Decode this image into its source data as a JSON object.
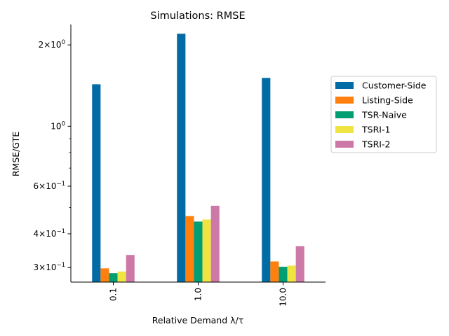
{
  "chart_data": {
    "type": "bar",
    "title": "Simulations: RMSE",
    "xlabel": "Relative Demand λ/τ",
    "ylabel": "RMSE/GTE",
    "yscale": "log",
    "ylim": [
      0.265,
      2.38
    ],
    "categories": [
      "0.1",
      "1.0",
      "10.0"
    ],
    "y_ticks": [
      {
        "value": 0.3,
        "base": "3",
        "mant": "10",
        "exp": "−1"
      },
      {
        "value": 0.4,
        "base": "4",
        "mant": "10",
        "exp": "−1"
      },
      {
        "value": 0.6,
        "base": "6",
        "mant": "10",
        "exp": "−1"
      },
      {
        "value": 1.0,
        "base": "",
        "mant": "10",
        "exp": "0"
      },
      {
        "value": 2.0,
        "base": "2",
        "mant": "10",
        "exp": "0"
      }
    ],
    "y_minor_ticks": [
      0.5,
      0.7,
      0.8,
      0.9
    ],
    "series": [
      {
        "name": "Customer-Side",
        "color": "#006BA4",
        "values": [
          1.43,
          2.2,
          1.51
        ]
      },
      {
        "name": "Listing-Side",
        "color": "#FF800E",
        "values": [
          0.298,
          0.465,
          0.316
        ]
      },
      {
        "name": "TSR-Naive",
        "color": "#009E73",
        "values": [
          0.286,
          0.444,
          0.302
        ]
      },
      {
        "name": "TSRI-1",
        "color": "#F0E442",
        "values": [
          0.29,
          0.452,
          0.305
        ]
      },
      {
        "name": "TSRI-2",
        "color": "#CC79A7",
        "values": [
          0.334,
          0.508,
          0.36
        ]
      }
    ],
    "legend_position": "right",
    "grid": false
  }
}
